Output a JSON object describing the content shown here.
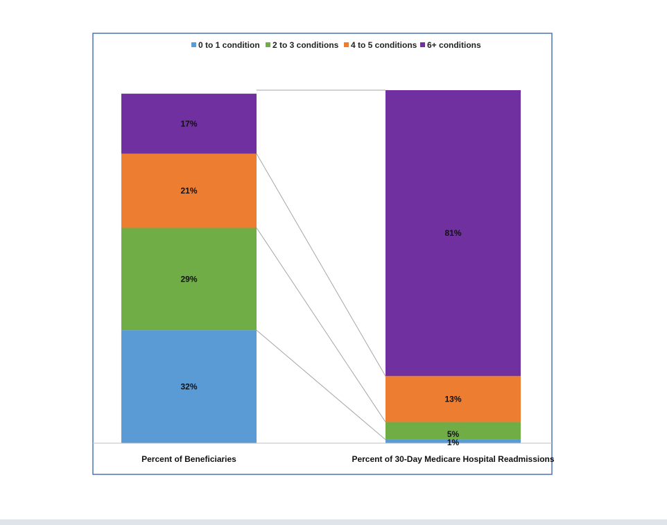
{
  "chart_data": {
    "type": "bar",
    "stacked": true,
    "categories": [
      "Percent of Beneficiaries",
      "Percent of 30-Day Medicare Hospital Readmissions"
    ],
    "series": [
      {
        "name": "0 to 1 condition",
        "color": "#5b9bd5",
        "values": [
          32,
          1
        ],
        "labels": [
          "32%",
          "1%"
        ]
      },
      {
        "name": "2 to 3 conditions",
        "color": "#70ad47",
        "values": [
          29,
          5
        ],
        "labels": [
          "29%",
          "5%"
        ]
      },
      {
        "name": "4 to 5 conditions",
        "color": "#ed7d31",
        "values": [
          21,
          13
        ],
        "labels": [
          "21%",
          "13%"
        ]
      },
      {
        "name": "6+ conditions",
        "color": "#7030a0",
        "values": [
          17,
          81
        ],
        "labels": [
          "17%",
          "81%"
        ]
      }
    ],
    "ylim": [
      0,
      100
    ],
    "legend_position": "top",
    "grid": false,
    "connector_lines": true
  }
}
